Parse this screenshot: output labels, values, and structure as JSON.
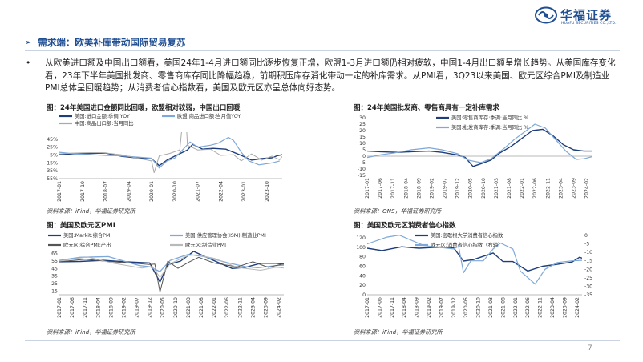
{
  "brand": {
    "name_cn": "华福证券",
    "name_en": "HUAFU SECURITIES CO.,LTD.",
    "color": "#1f4e93"
  },
  "section": {
    "arrow": "➢",
    "title": "需求端：欧美补库带动国际贸易复苏"
  },
  "bullet": {
    "dot": "•",
    "text": "从欧美进口额及中国出口额看，美国24年1-4月进口额同比逐步恢复正增，欧盟1-3月进口额仍相对疲软，中国1-4月出口额呈增长趋势。从美国库存变化看，23年下半年美国批发商、零售商库存同比降幅趋稳，前期积压库存消化带动一定的补库需求。从PMI看，3Q23以来美国、欧元区综合PMI及制造业PMI总体呈回暖趋势；从消费者信心指数看，美国及欧元区亦呈总体向好态势。"
  },
  "page_number": "7",
  "chart_data": [
    {
      "id": "c1",
      "type": "line",
      "title": "图：24年美国进口金额同比回暖，欧盟相对较弱，中国出口回暖",
      "source": "资料来源：iFind，华福证券研究所",
      "ylim": [
        -55,
        55
      ],
      "yticks": [
        "45%",
        "25%",
        "5%",
        "-15%",
        "-35%",
        "-55%"
      ],
      "ytick_values": [
        45,
        25,
        5,
        -15,
        -35,
        -55
      ],
      "xticks": [
        "2017-01",
        "2017-10",
        "2018-07",
        "2019-04",
        "2020-01",
        "2020-10",
        "2021-07",
        "2022-04",
        "2023-01",
        "2023-10"
      ],
      "x_start": "2017-01",
      "x_end": "2024-04",
      "legend": [
        "美国:进口金额:季调:YOY",
        "欧盟:商品进口额:当月值YOY",
        "中国:商品出口额:当月同比"
      ],
      "series": [
        {
          "name": "美国:进口金额:季调:YOY",
          "color": "#1f3d7a",
          "width": 1.4,
          "x": [
            "2017-01",
            "2017-07",
            "2018-01",
            "2018-07",
            "2019-01",
            "2019-07",
            "2020-01",
            "2020-04",
            "2020-07",
            "2020-10",
            "2021-03",
            "2021-05",
            "2021-09",
            "2022-01",
            "2022-06",
            "2022-12",
            "2023-04",
            "2023-08",
            "2023-12",
            "2024-02",
            "2024-04"
          ],
          "values": [
            6,
            8,
            9,
            10,
            2,
            -2,
            -4,
            -22,
            -8,
            2,
            18,
            32,
            20,
            22,
            20,
            4,
            -8,
            -4,
            -2,
            3,
            6
          ]
        },
        {
          "name": "欧盟:商品进口额:当月值YOY",
          "color": "#7ea8d8",
          "width": 1.2,
          "x": [
            "2017-01",
            "2017-07",
            "2018-01",
            "2018-07",
            "2019-01",
            "2019-07",
            "2020-01",
            "2020-04",
            "2020-07",
            "2020-10",
            "2021-04",
            "2021-07",
            "2021-12",
            "2022-03",
            "2022-07",
            "2022-09",
            "2022-12",
            "2023-03",
            "2023-07",
            "2023-12",
            "2024-03"
          ],
          "values": [
            12,
            8,
            6,
            4,
            3,
            0,
            -3,
            -28,
            -10,
            -3,
            38,
            25,
            30,
            35,
            50,
            42,
            12,
            -10,
            -20,
            -15,
            -10
          ]
        },
        {
          "name": "中国:商品出口额:当月同比",
          "color": "#a9a9a9",
          "width": 1.0,
          "x": [
            "2017-01",
            "2017-06",
            "2018-01",
            "2018-06",
            "2019-01",
            "2019-06",
            "2020-01",
            "2020-02",
            "2020-04",
            "2020-08",
            "2020-12",
            "2021-02",
            "2021-03",
            "2021-07",
            "2021-12",
            "2022-04",
            "2022-09",
            "2022-12",
            "2023-04",
            "2023-08",
            "2023-12",
            "2024-03",
            "2024-04"
          ],
          "values": [
            8,
            10,
            11,
            11,
            6,
            -1,
            -10,
            -40,
            3,
            9,
            18,
            150,
            30,
            18,
            20,
            4,
            6,
            -10,
            8,
            -8,
            2,
            -7,
            1.5
          ]
        }
      ]
    },
    {
      "id": "c2",
      "type": "line",
      "title": "图：24年美国批发商、零售商具有一定补库需求",
      "source": "资料来源：ONS，华福证券研究所",
      "ylim": [
        -15,
        30
      ],
      "yticks": [
        "30",
        "25",
        "20",
        "15",
        "10",
        "5",
        "0",
        "-5",
        "-10",
        "-15"
      ],
      "ytick_values": [
        30,
        25,
        20,
        15,
        10,
        5,
        0,
        -5,
        -10,
        -15
      ],
      "xticks": [
        "2017-01",
        "2017-06",
        "2017-11",
        "2018-04",
        "2018-09",
        "2019-02",
        "2019-07",
        "2019-12",
        "2020-05",
        "2020-10",
        "2021-03",
        "2021-08",
        "2022-01",
        "2022-06",
        "2022-11",
        "2023-04",
        "2023-09",
        "2024-02"
      ],
      "x_start": "2017-01",
      "x_end": "2024-04",
      "legend": [
        "美国:零售商库存:季调:当月同比 %",
        "美国:批发商库存:季调:当月同比 %"
      ],
      "series": [
        {
          "name": "美国:零售商库存:季调:当月同比 %",
          "color": "#1f3d7a",
          "width": 1.4,
          "x": [
            "2017-01",
            "2017-06",
            "2018-01",
            "2018-06",
            "2019-01",
            "2019-06",
            "2019-12",
            "2020-03",
            "2020-06",
            "2020-09",
            "2021-01",
            "2021-04",
            "2021-09",
            "2022-01",
            "2022-05",
            "2022-09",
            "2023-01",
            "2023-05",
            "2023-09",
            "2024-01",
            "2024-04"
          ],
          "values": [
            4,
            3.5,
            3,
            3.5,
            4,
            3,
            1,
            -1,
            -8,
            -6,
            -3,
            2,
            8,
            14,
            20,
            21,
            16,
            9,
            5,
            4,
            4
          ]
        },
        {
          "name": "美国:批发商库存:季调:当月同比 %",
          "color": "#7ea8d8",
          "width": 1.2,
          "x": [
            "2017-01",
            "2017-06",
            "2018-01",
            "2018-06",
            "2019-01",
            "2019-06",
            "2019-12",
            "2020-04",
            "2020-09",
            "2021-01",
            "2021-06",
            "2021-10",
            "2022-02",
            "2022-06",
            "2022-10",
            "2023-02",
            "2023-06",
            "2023-10",
            "2024-01",
            "2024-04"
          ],
          "values": [
            -1,
            1,
            3,
            5,
            6.5,
            5,
            2,
            -3,
            -5,
            -2,
            6,
            13,
            19,
            25,
            22,
            13,
            4,
            -2.5,
            -2,
            -0.5
          ]
        }
      ]
    },
    {
      "id": "c3",
      "type": "line",
      "title": "图：美国及欧元区PMI",
      "source": "资料来源：iFind，华福证券研究所",
      "ylim": [
        10,
        70
      ],
      "yticks": [
        "65",
        "55",
        "45",
        "35",
        "25",
        "15"
      ],
      "ytick_values": [
        65,
        55,
        45,
        35,
        25,
        15
      ],
      "xticks": [
        "2017-01",
        "2017-06",
        "2017-11",
        "2018-04",
        "2018-09",
        "2019-02",
        "2019-07",
        "2019-12",
        "2020-05",
        "2020-10",
        "2021-03",
        "2021-08",
        "2022-01",
        "2022-06",
        "2022-11",
        "2023-04",
        "2023-09",
        "2024-02"
      ],
      "x_start": "2017-01",
      "x_end": "2024-04",
      "legend": [
        "美国:Markit:综合PMI",
        "美国:供应管理协会(ISM):制造业PMI",
        "欧元区:综合PMI:产出",
        "欧元区:制造业PMI"
      ],
      "series": [
        {
          "name": "美国:Markit:综合PMI",
          "color": "#1f3d7a",
          "width": 1.4,
          "x": [
            "2017-01",
            "2017-09",
            "2018-06",
            "2019-03",
            "2019-12",
            "2020-04",
            "2020-07",
            "2020-12",
            "2021-05",
            "2021-12",
            "2022-08",
            "2023-01",
            "2023-07",
            "2024-01",
            "2024-04"
          ],
          "values": [
            54,
            54.5,
            56,
            54,
            52.5,
            27,
            50,
            55,
            68,
            57,
            45,
            46.5,
            52,
            52,
            51
          ]
        },
        {
          "name": "美国:供应管理协会(ISM):制造业PMI",
          "color": "#7ea8d8",
          "width": 1.3,
          "x": [
            "2017-01",
            "2017-09",
            "2018-08",
            "2019-08",
            "2019-12",
            "2020-04",
            "2020-08",
            "2021-03",
            "2021-09",
            "2022-06",
            "2023-01",
            "2023-06",
            "2024-01",
            "2024-04"
          ],
          "values": [
            56,
            60,
            61,
            49,
            47.5,
            41,
            56,
            64,
            61,
            53,
            47.5,
            46,
            49,
            49.5
          ]
        },
        {
          "name": "欧元区:综合PMI:产出",
          "color": "#555555",
          "width": 1.0,
          "x": [
            "2017-01",
            "2017-11",
            "2018-08",
            "2019-06",
            "2019-12",
            "2020-02",
            "2020-04",
            "2020-07",
            "2020-11",
            "2021-03",
            "2021-07",
            "2022-01",
            "2022-10",
            "2023-04",
            "2023-10",
            "2024-04"
          ],
          "values": [
            54,
            57.5,
            54.5,
            52,
            50.5,
            51,
            13.6,
            54.9,
            45.3,
            53.2,
            60,
            52.3,
            47.3,
            54,
            46.5,
            51.5
          ]
        },
        {
          "name": "欧元区:制造业PMI",
          "color": "#b9b9b9",
          "width": 1.0,
          "x": [
            "2017-01",
            "2017-12",
            "2018-10",
            "2019-09",
            "2020-01",
            "2020-04",
            "2020-08",
            "2021-03",
            "2021-06",
            "2022-01",
            "2022-10",
            "2023-07",
            "2024-01",
            "2024-04"
          ],
          "values": [
            55,
            60.5,
            52,
            45.7,
            47.9,
            33.4,
            51.7,
            62.5,
            63.4,
            58.7,
            46.4,
            42.7,
            46.6,
            45.7
          ]
        }
      ]
    },
    {
      "id": "c4",
      "type": "line",
      "title": "图：美国及欧元区消费者信心指数",
      "source": "资料来源：iFind，华福证券研究所",
      "ylim": [
        0,
        125
      ],
      "y2lim": [
        -35,
        0
      ],
      "yticks": [
        "120",
        "100",
        "80",
        "60",
        "40",
        "20",
        "0"
      ],
      "ytick_values": [
        120,
        100,
        80,
        60,
        40,
        20,
        0
      ],
      "y2ticks": [
        "0",
        "-5",
        "-10",
        "-15",
        "-20",
        "-25",
        "-30",
        "-35"
      ],
      "y2tick_values": [
        0,
        -5,
        -10,
        -15,
        -20,
        -25,
        -30,
        -35
      ],
      "xticks": [
        "2017-01",
        "2017-06",
        "2017-11",
        "2018-04",
        "2018-09",
        "2019-02",
        "2019-07",
        "2019-12",
        "2020-05",
        "2020-10",
        "2021-03",
        "2021-08",
        "2022-01",
        "2022-06",
        "2022-11",
        "2023-04",
        "2023-09",
        "2024-02"
      ],
      "x_start": "2017-01",
      "x_end": "2024-04",
      "legend": [
        "美国:密歇根大学消费者信心指数",
        "欧元区:消费者信心指数（右轴）"
      ],
      "series": [
        {
          "name": "美国:密歇根大学消费者信心指数",
          "color": "#1f3d7a",
          "width": 1.4,
          "axis": "left",
          "x": [
            "2017-01",
            "2017-07",
            "2018-03",
            "2018-10",
            "2019-05",
            "2019-12",
            "2020-04",
            "2020-08",
            "2021-04",
            "2021-08",
            "2021-12",
            "2022-06",
            "2022-12",
            "2023-06",
            "2023-12",
            "2024-03",
            "2024-04"
          ],
          "values": [
            98,
            93,
            101,
            98,
            100,
            99,
            71,
            74,
            88,
            70,
            70,
            50,
            60,
            64,
            69,
            79,
            77
          ]
        },
        {
          "name": "欧元区:消费者信心指数（右轴）",
          "color": "#7ea8d8",
          "width": 1.2,
          "axis": "right",
          "x": [
            "2017-01",
            "2017-09",
            "2018-02",
            "2018-12",
            "2019-06",
            "2019-12",
            "2020-02",
            "2020-04",
            "2020-07",
            "2020-12",
            "2021-04",
            "2021-07",
            "2021-12",
            "2022-03",
            "2022-09",
            "2023-01",
            "2023-06",
            "2023-12",
            "2024-04"
          ],
          "values": [
            -5,
            -1,
            0.2,
            -6,
            -7,
            -8,
            -6.5,
            -22,
            -15,
            -15,
            -8,
            -4.5,
            -8,
            -21,
            -28.7,
            -20,
            -16,
            -15,
            -14.7
          ]
        }
      ]
    }
  ]
}
